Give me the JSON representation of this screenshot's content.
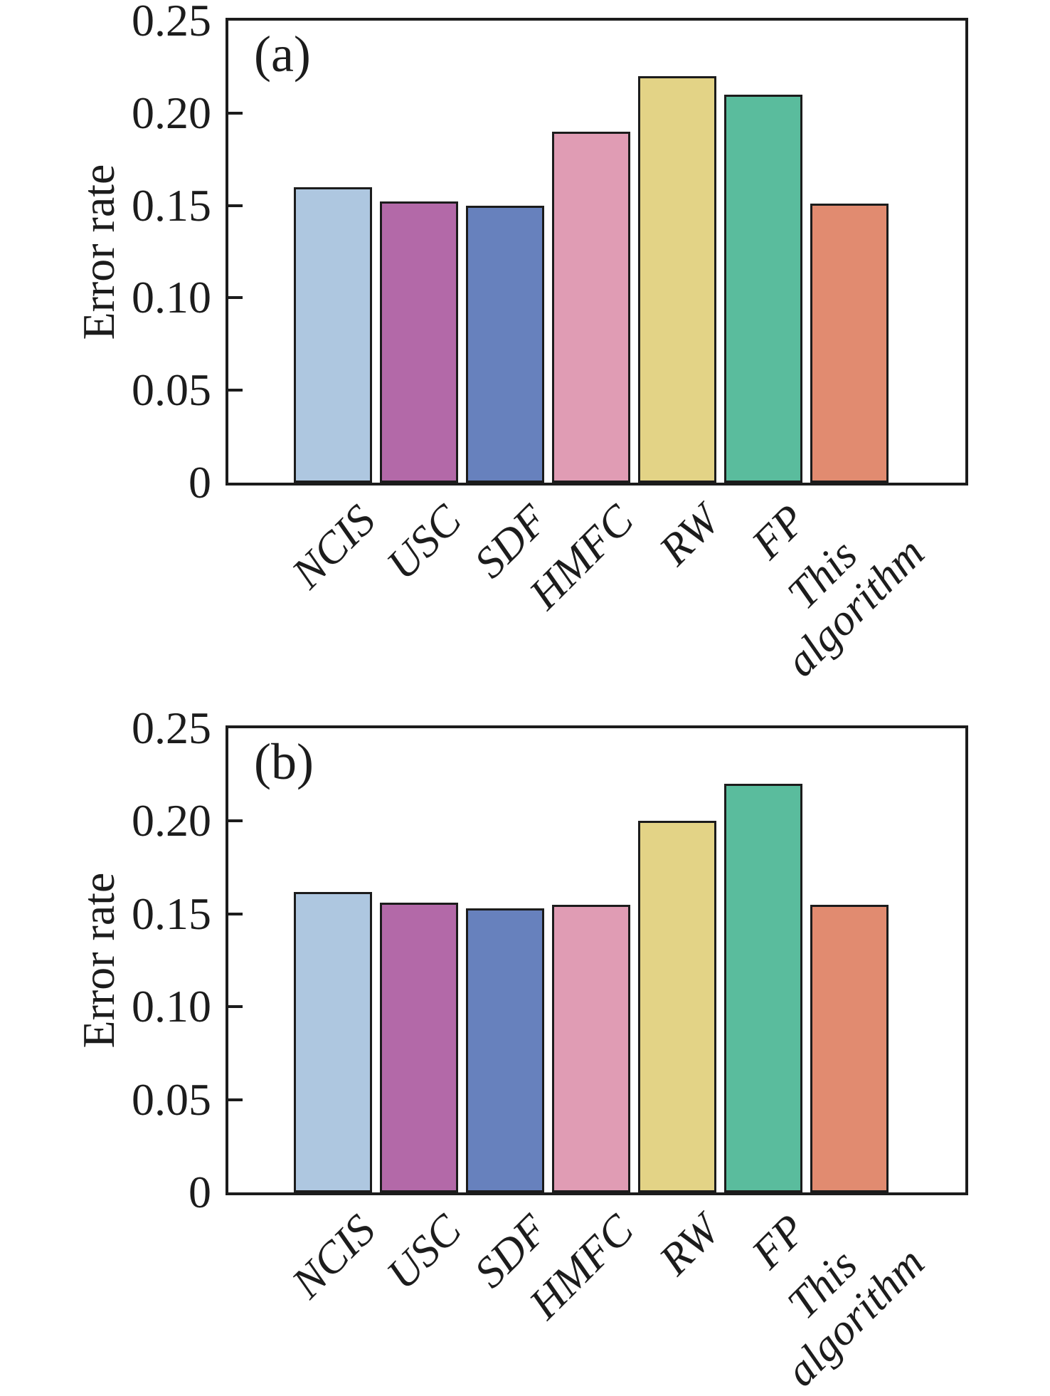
{
  "figure": {
    "background": "#ffffff",
    "panels": [
      "(a)",
      "(b)"
    ]
  },
  "style": {
    "axis_color": "#1c1c1c",
    "bar_edge_color": "#1c1c1c",
    "text_color": "#1c1c1c"
  },
  "chart_data": [
    {
      "type": "bar",
      "panel_label": "(a)",
      "title": "",
      "xlabel": "",
      "ylabel": "Error rate",
      "categories": [
        "NCIS",
        "USC",
        "SDF",
        "HMFC",
        "RW",
        "FP",
        "This algorithm"
      ],
      "values": [
        0.16,
        0.152,
        0.15,
        0.19,
        0.22,
        0.21,
        0.151
      ],
      "bar_colors": [
        "#aec7e0",
        "#b369a8",
        "#6781bd",
        "#e09cb4",
        "#e3d386",
        "#5abc9d",
        "#e18b70"
      ],
      "ylim": [
        0,
        0.25
      ],
      "yticks": [
        0,
        0.05,
        0.1,
        0.15,
        0.2,
        0.25
      ],
      "ytick_labels": [
        "0",
        "0.05",
        "0.10",
        "0.15",
        "0.20",
        "0.25"
      ],
      "grid": false,
      "legend": "none"
    },
    {
      "type": "bar",
      "panel_label": "(b)",
      "title": "",
      "xlabel": "",
      "ylabel": "Error rate",
      "categories": [
        "NCIS",
        "USC",
        "SDF",
        "HMFC",
        "RW",
        "FP",
        "This algorithm"
      ],
      "values": [
        0.162,
        0.156,
        0.153,
        0.155,
        0.2,
        0.22,
        0.155
      ],
      "bar_colors": [
        "#aec7e0",
        "#b369a8",
        "#6781bd",
        "#e09cb4",
        "#e3d386",
        "#5abc9d",
        "#e18b70"
      ],
      "ylim": [
        0,
        0.25
      ],
      "yticks": [
        0,
        0.05,
        0.1,
        0.15,
        0.2,
        0.25
      ],
      "ytick_labels": [
        "0",
        "0.05",
        "0.10",
        "0.15",
        "0.20",
        "0.25"
      ],
      "grid": false,
      "legend": "none"
    }
  ]
}
